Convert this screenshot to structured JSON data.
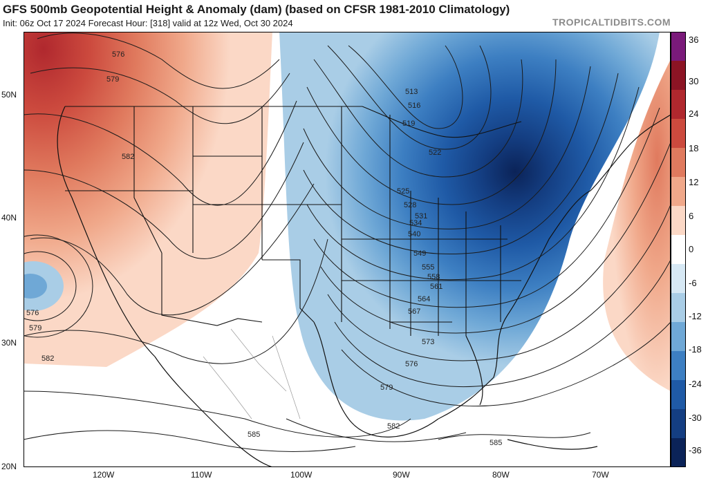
{
  "header": {
    "title": "GFS 500mb Geopotential Height & Anomaly (dam) (based on CFSR 1981-2010 Climatology)",
    "subtitle": "Init: 06z Oct 17 2024   Forecast Hour: [318]   valid at 12z Wed, Oct 30 2024",
    "brand": "TROPICALTIDBITS.COM"
  },
  "colorbar": {
    "labels": [
      "36",
      "30",
      "24",
      "18",
      "12",
      "6",
      "0",
      "-6",
      "-12",
      "-18",
      "-24",
      "-30",
      "-36"
    ],
    "colors": [
      "#7a1a7a",
      "#8c1424",
      "#b0282e",
      "#cc4a3e",
      "#e07a5e",
      "#f0a88a",
      "#fbd8c6",
      "#ffffff",
      "#d6e8f4",
      "#a9cde6",
      "#6fa8d6",
      "#3d7fc2",
      "#1f5aa6",
      "#143e82",
      "#0b2358"
    ]
  },
  "axes": {
    "lat_labels": [
      "50N",
      "40N",
      "30N",
      "20N"
    ],
    "lon_labels": [
      "120W",
      "110W",
      "100W",
      "90W",
      "80W",
      "70W"
    ]
  },
  "contour_labels": [
    "576",
    "579",
    "582",
    "576",
    "579",
    "582",
    "585",
    "513",
    "516",
    "519",
    "522",
    "525",
    "528",
    "531",
    "534",
    "540",
    "549",
    "555",
    "558",
    "561",
    "564",
    "567",
    "573",
    "576",
    "579",
    "582",
    "585"
  ]
}
